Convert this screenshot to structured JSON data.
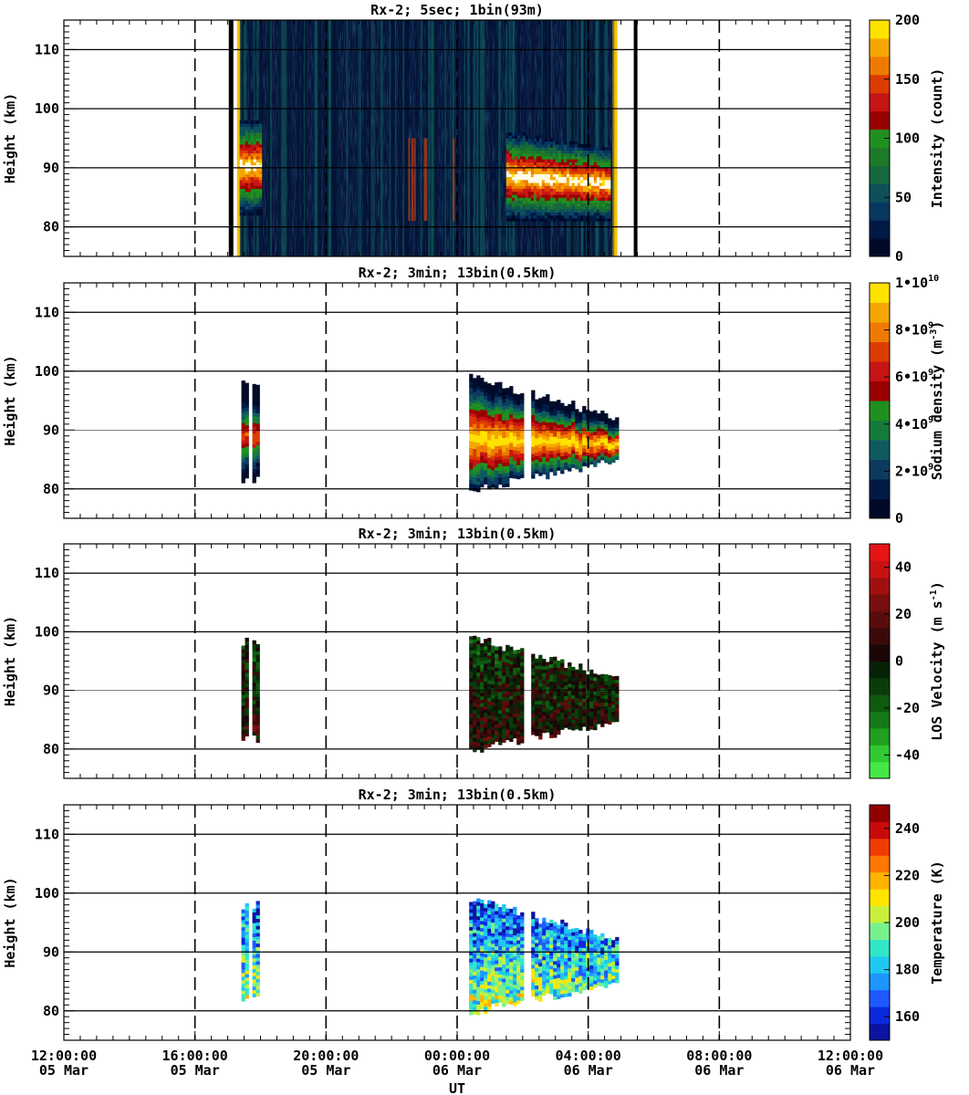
{
  "chart_data": [
    {
      "type": "heatmap",
      "title": "Rx-2;  5sec; 1bin(93m)",
      "ylabel": "Height (km)",
      "ylim": [
        75,
        115
      ],
      "yticks": [
        80,
        90,
        100,
        110
      ],
      "colorbar": {
        "label": "Intensity (count)",
        "range": [
          0,
          200
        ],
        "ticks": [
          "0",
          "50",
          "100",
          "150",
          "200"
        ],
        "colors": [
          "#000a28",
          "#001a46",
          "#073860",
          "#0d505a",
          "#16683d",
          "#1d7a2a",
          "#1f8f1f",
          "#990000",
          "#c71414",
          "#dc3c00",
          "#ee7a00",
          "#f5a700",
          "#ffe200"
        ]
      },
      "data_regions": [
        {
          "start": "17:22",
          "end": "04:50",
          "bottom": 75,
          "top": 115,
          "kind": "noise"
        },
        {
          "start": "17:22",
          "end": "18:00",
          "bottom": 81,
          "top": 98,
          "kind": "layer"
        },
        {
          "start": "01:30",
          "end": "04:40",
          "bottom": 80,
          "top": 96,
          "kind": "layer"
        }
      ]
    },
    {
      "type": "heatmap",
      "title": "Rx-2; 3min; 13bin(0.5km)",
      "ylabel": "Height (km)",
      "ylim": [
        75,
        115
      ],
      "yticks": [
        80,
        90,
        100,
        110
      ],
      "colorbar": {
        "label": "Sodium density (m-3)",
        "range": [
          0,
          10000000000
        ],
        "ticks": [
          "0",
          "2•10^9",
          "4•10^9",
          "6•10^9",
          "8•10^9",
          "1•10^10"
        ],
        "colors": [
          "#000a28",
          "#001a46",
          "#0c3a5e",
          "#0e5a5e",
          "#157a3a",
          "#1f8f1f",
          "#990000",
          "#c71414",
          "#dc3c00",
          "#ee7a00",
          "#f5a700",
          "#ffe200"
        ]
      },
      "data_regions": [
        {
          "start": "17:25",
          "end": "17:58",
          "bottom": 81,
          "top": 98.5
        },
        {
          "start": "00:22",
          "end": "04:50",
          "bottom": 79,
          "top": 99.5
        }
      ]
    },
    {
      "type": "heatmap",
      "title": "Rx-2; 3min; 13bin(0.5km)",
      "ylabel": "Height (km)",
      "ylim": [
        75,
        115
      ],
      "yticks": [
        80,
        90,
        100,
        110
      ],
      "colorbar": {
        "label": "LOS Velocity (m s-1)",
        "range": [
          -50,
          50
        ],
        "ticks": [
          "-40",
          "-20",
          "0",
          "20",
          "40"
        ],
        "colors": [
          "#46e646",
          "#32c832",
          "#1fa01f",
          "#167816",
          "#0e5a0e",
          "#0a3c0a",
          "#062206",
          "#1a0606",
          "#3a0a0a",
          "#5a0c0c",
          "#780e0e",
          "#a01010",
          "#c81212",
          "#e61414"
        ]
      },
      "data_regions": [
        {
          "start": "17:25",
          "end": "17:58",
          "bottom": 81,
          "top": 98.5
        },
        {
          "start": "00:22",
          "end": "04:50",
          "bottom": 79,
          "top": 99.5
        }
      ]
    },
    {
      "type": "heatmap",
      "title": "Rx-2; 3min; 13bin(0.5km)",
      "ylabel": "Height (km)",
      "xlabel": "UT",
      "ylim": [
        75,
        115
      ],
      "yticks": [
        80,
        90,
        100,
        110
      ],
      "colorbar": {
        "label": "Temperature (K)",
        "range": [
          150,
          250
        ],
        "ticks": [
          "160",
          "180",
          "200",
          "220",
          "240"
        ],
        "colors": [
          "#0a14a0",
          "#0a28dc",
          "#1e5aff",
          "#1e96ff",
          "#1ec8f0",
          "#32e6c8",
          "#78f08c",
          "#c8f03c",
          "#ffe600",
          "#ffb400",
          "#ff7800",
          "#f03c00",
          "#c80a0a",
          "#900000"
        ]
      },
      "data_regions": [
        {
          "start": "17:25",
          "end": "17:58",
          "bottom": 81,
          "top": 98.5
        },
        {
          "start": "00:22",
          "end": "04:50",
          "bottom": 79,
          "top": 99.5
        }
      ]
    }
  ],
  "x_axis": {
    "label": "UT",
    "range": [
      "12:00:00 05 Mar",
      "12:00:00 06 Mar"
    ],
    "ticks": [
      {
        "time": "12:00:00",
        "date": "05 Mar"
      },
      {
        "time": "16:00:00",
        "date": "05 Mar"
      },
      {
        "time": "20:00:00",
        "date": "05 Mar"
      },
      {
        "time": "00:00:00",
        "date": "06 Mar"
      },
      {
        "time": "04:00:00",
        "date": "06 Mar"
      },
      {
        "time": "08:00:00",
        "date": "06 Mar"
      },
      {
        "time": "12:00:00",
        "date": "06 Mar"
      }
    ]
  }
}
